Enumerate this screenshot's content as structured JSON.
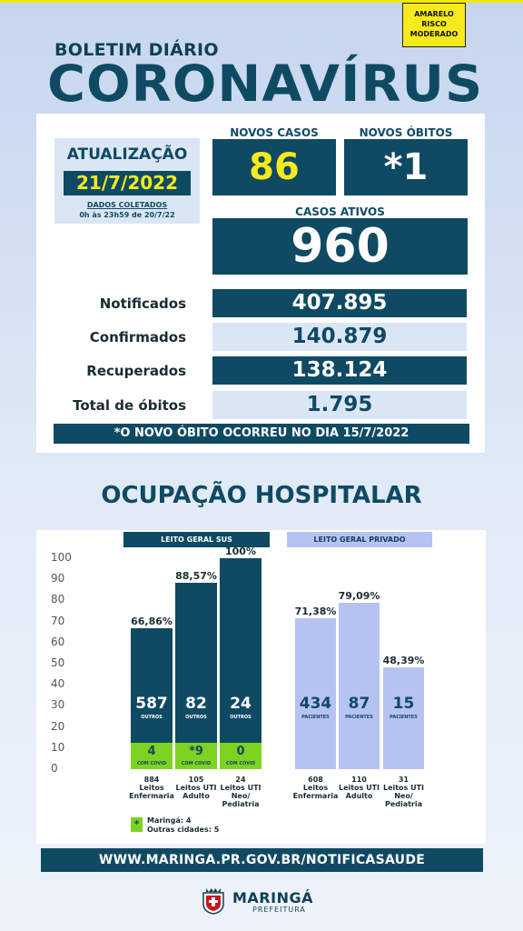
{
  "risk": {
    "line1": "AMARELO",
    "line2": "RISCO",
    "line3": "MODERADO",
    "color": "#f6ea1c"
  },
  "header": {
    "subtitle": "BOLETIM DIÁRIO",
    "title": "CORONAVÍRUS"
  },
  "update": {
    "label": "ATUALIZAÇÃO",
    "date": "21/7/2022",
    "note_title": "DADOS COLETADOS",
    "note_period": "0h às 23h59 de 20/7/22"
  },
  "summary": {
    "new_cases_label": "NOVOS CASOS",
    "new_cases": "86",
    "new_deaths_label": "NOVOS ÓBITOS",
    "new_deaths": "*1",
    "active_label": "CASOS ATIVOS",
    "active": "960"
  },
  "rows": [
    {
      "label": "Notificados",
      "value": "407.895"
    },
    {
      "label": "Confirmados",
      "value": "140.879"
    },
    {
      "label": "Recuperados",
      "value": "138.124"
    },
    {
      "label": "Total de óbitos",
      "value": "1.795"
    }
  ],
  "death_note": "*O NOVO  ÓBITO OCORREU NO DIA  15/7/2022",
  "hospital_title": "OCUPAÇÃO HOSPITALAR",
  "chart_data": {
    "type": "bar",
    "ylim": [
      0,
      100
    ],
    "yticks": [
      "100",
      "90",
      "80",
      "70",
      "60",
      "50",
      "40",
      "30",
      "20",
      "10",
      "0"
    ],
    "groups": [
      {
        "name": "LEITO GERAL SUS",
        "header_color": "#0f4a63",
        "bar_color": "#0f4a63",
        "bars": [
          {
            "percent": 66.86,
            "percent_label": "66,86%",
            "others": "587",
            "others_label": "OUTROS",
            "covid": "4",
            "covid_label": "COM COVID",
            "total": "884",
            "category": "Leitos Enfermaria"
          },
          {
            "percent": 88.57,
            "percent_label": "88,57%",
            "others": "82",
            "others_label": "OUTROS",
            "covid": "*9",
            "covid_label": "COM COVID",
            "total": "105",
            "category": "Leitos UTI Adulto"
          },
          {
            "percent": 100,
            "percent_label": "100%",
            "others": "24",
            "others_label": "OUTROS",
            "covid": "0",
            "covid_label": "COM COVID",
            "total": "24",
            "category": "Leitos UTI Neo/ Pediatria"
          }
        ]
      },
      {
        "name": "LEITO GERAL PRIVADO",
        "header_color": "#b6c3f2",
        "bar_color": "#b6c3f2",
        "bars": [
          {
            "percent": 71.38,
            "percent_label": "71,38%",
            "patients": "434",
            "patients_label": "PACIENTES",
            "total": "608",
            "category": "Leitos Enfermaria"
          },
          {
            "percent": 79.09,
            "percent_label": "79,09%",
            "patients": "87",
            "patients_label": "PACIENTES",
            "total": "110",
            "category": "Leitos UTI Adulto"
          },
          {
            "percent": 48.39,
            "percent_label": "48,39%",
            "patients": "15",
            "patients_label": "PACIENTES",
            "total": "31",
            "category": "Leitos UTI Neo/ Pediatria"
          }
        ]
      }
    ],
    "covid_color": "#7ed321"
  },
  "legend": {
    "symbol": "*",
    "line1": "Maringá: 4",
    "line2": "Outras cidades: 5"
  },
  "url": "WWW.MARINGA.PR.GOV.BR/NOTIFICASAUDE",
  "footer": {
    "name": "MARINGÁ",
    "sub": "PREFEITURA"
  }
}
